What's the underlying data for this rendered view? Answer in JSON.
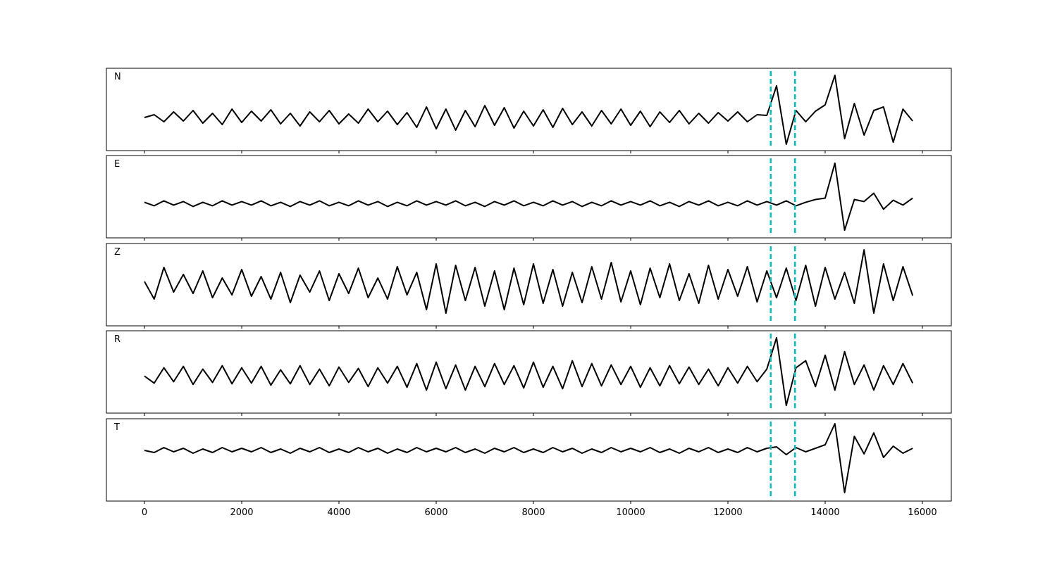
{
  "chart_data": [
    {
      "type": "line",
      "label": "N",
      "color": "#000000",
      "vline_color": "#00bfbf",
      "vlines": [
        12880,
        13380
      ],
      "xlim": [
        -783,
        16594
      ],
      "xticks": [
        0,
        2000,
        4000,
        6000,
        8000,
        10000,
        12000,
        14000,
        16000
      ],
      "show_xticklabels": false,
      "ylim": [
        -47,
        70
      ],
      "x": [
        0,
        200,
        400,
        600,
        800,
        1000,
        1200,
        1400,
        1600,
        1800,
        2000,
        2200,
        2400,
        2600,
        2800,
        3000,
        3200,
        3400,
        3600,
        3800,
        4000,
        4200,
        4400,
        4600,
        4800,
        5000,
        5200,
        5400,
        5600,
        5800,
        6000,
        6200,
        6400,
        6600,
        6800,
        7000,
        7200,
        7400,
        7600,
        7800,
        8000,
        8200,
        8400,
        8600,
        8800,
        9000,
        9200,
        9400,
        9600,
        9800,
        10000,
        10200,
        10400,
        10600,
        10800,
        11000,
        11200,
        11400,
        11600,
        11800,
        12000,
        12200,
        12400,
        12600,
        12800,
        13000,
        13200,
        13400,
        13600,
        13800,
        14000,
        14200,
        14400,
        14600,
        14800,
        15000,
        15200,
        15400,
        15600,
        15800
      ],
      "values": [
        0,
        4,
        -6,
        8,
        -5,
        10,
        -8,
        6,
        -10,
        12,
        -7,
        9,
        -5,
        11,
        -9,
        6,
        -12,
        8,
        -6,
        10,
        -9,
        5,
        -8,
        12,
        -6,
        9,
        -10,
        7,
        -14,
        15,
        -16,
        12,
        -18,
        10,
        -13,
        17,
        -11,
        14,
        -15,
        9,
        -12,
        11,
        -14,
        13,
        -10,
        8,
        -12,
        10,
        -9,
        12,
        -11,
        9,
        -13,
        8,
        -7,
        10,
        -9,
        6,
        -8,
        7,
        -5,
        8,
        -6,
        4,
        3,
        45,
        -38,
        10,
        -6,
        9,
        18,
        60,
        -30,
        20,
        -25,
        10,
        15,
        -35,
        12,
        -5
      ]
    },
    {
      "type": "line",
      "label": "E",
      "color": "#000000",
      "vline_color": "#00bfbf",
      "vlines": [
        12880,
        13380
      ],
      "xlim": [
        -783,
        16594
      ],
      "xticks": [
        0,
        2000,
        4000,
        6000,
        8000,
        10000,
        12000,
        14000,
        16000
      ],
      "show_xticklabels": false,
      "ylim": [
        -49,
        69
      ],
      "x": [
        0,
        200,
        400,
        600,
        800,
        1000,
        1200,
        1400,
        1600,
        1800,
        2000,
        2200,
        2400,
        2600,
        2800,
        3000,
        3200,
        3400,
        3600,
        3800,
        4000,
        4200,
        4400,
        4600,
        4800,
        5000,
        5200,
        5400,
        5600,
        5800,
        6000,
        6200,
        6400,
        6600,
        6800,
        7000,
        7200,
        7400,
        7600,
        7800,
        8000,
        8200,
        8400,
        8600,
        8800,
        9000,
        9200,
        9400,
        9600,
        9800,
        10000,
        10200,
        10400,
        10600,
        10800,
        11000,
        11200,
        11400,
        11600,
        11800,
        12000,
        12200,
        12400,
        12600,
        12800,
        13000,
        13200,
        13400,
        13600,
        13800,
        14000,
        14200,
        14400,
        14600,
        14800,
        15000,
        15200,
        15400,
        15600,
        15800
      ],
      "values": [
        2,
        -3,
        4,
        -2,
        3,
        -4,
        2,
        -3,
        4,
        -2,
        3,
        -2,
        4,
        -3,
        2,
        -4,
        3,
        -2,
        4,
        -3,
        2,
        -3,
        4,
        -2,
        3,
        -4,
        2,
        -3,
        4,
        -2,
        3,
        -2,
        4,
        -3,
        2,
        -4,
        3,
        -2,
        4,
        -3,
        2,
        -3,
        4,
        -2,
        3,
        -4,
        2,
        -3,
        4,
        -2,
        3,
        -2,
        4,
        -3,
        2,
        -4,
        3,
        -2,
        4,
        -3,
        2,
        -3,
        4,
        -2,
        3,
        -2,
        4,
        -3,
        2,
        6,
        8,
        58,
        -38,
        6,
        3,
        15,
        -8,
        5,
        -2,
        8
      ]
    },
    {
      "type": "line",
      "label": "Z",
      "color": "#000000",
      "vline_color": "#00bfbf",
      "vlines": [
        12880,
        13380
      ],
      "xlim": [
        -783,
        16594
      ],
      "xticks": [
        0,
        2000,
        4000,
        6000,
        8000,
        10000,
        12000,
        14000,
        16000
      ],
      "show_xticklabels": false,
      "ylim": [
        -58,
        59
      ],
      "x": [
        0,
        200,
        400,
        600,
        800,
        1000,
        1200,
        1400,
        1600,
        1800,
        2000,
        2200,
        2400,
        2600,
        2800,
        3000,
        3200,
        3400,
        3600,
        3800,
        4000,
        4200,
        4400,
        4600,
        4800,
        5000,
        5200,
        5400,
        5600,
        5800,
        6000,
        6200,
        6400,
        6600,
        6800,
        7000,
        7200,
        7400,
        7600,
        7800,
        8000,
        8200,
        8400,
        8600,
        8800,
        9000,
        9200,
        9400,
        9600,
        9800,
        10000,
        10200,
        10400,
        10600,
        10800,
        11000,
        11200,
        11400,
        11600,
        11800,
        12000,
        12200,
        12400,
        12600,
        12800,
        13000,
        13200,
        13400,
        13600,
        13800,
        14000,
        14200,
        14400,
        14600,
        14800,
        15000,
        15200,
        15400,
        15600,
        15800
      ],
      "values": [
        5,
        -20,
        25,
        -10,
        15,
        -12,
        20,
        -18,
        10,
        -14,
        22,
        -16,
        12,
        -20,
        18,
        -25,
        14,
        -10,
        20,
        -22,
        16,
        -12,
        24,
        -18,
        10,
        -20,
        26,
        -14,
        18,
        -35,
        30,
        -40,
        28,
        -22,
        25,
        -30,
        20,
        -35,
        24,
        -28,
        30,
        -26,
        22,
        -30,
        18,
        -25,
        26,
        -20,
        32,
        -24,
        20,
        -28,
        24,
        -18,
        30,
        -22,
        16,
        -26,
        28,
        -20,
        22,
        -16,
        26,
        -24,
        20,
        -18,
        24,
        -22,
        28,
        -30,
        25,
        -20,
        18,
        -26,
        50,
        -40,
        30,
        -22,
        26,
        -15
      ]
    },
    {
      "type": "line",
      "label": "R",
      "color": "#000000",
      "vline_color": "#00bfbf",
      "vlines": [
        12880,
        13380
      ],
      "xlim": [
        -783,
        16594
      ],
      "xticks": [
        0,
        2000,
        4000,
        6000,
        8000,
        10000,
        12000,
        14000,
        16000
      ],
      "show_xticklabels": false,
      "ylim": [
        -53,
        65
      ],
      "x": [
        0,
        200,
        400,
        600,
        800,
        1000,
        1200,
        1400,
        1600,
        1800,
        2000,
        2200,
        2400,
        2600,
        2800,
        3000,
        3200,
        3400,
        3600,
        3800,
        4000,
        4200,
        4400,
        4600,
        4800,
        5000,
        5200,
        5400,
        5600,
        5800,
        6000,
        6200,
        6400,
        6600,
        6800,
        7000,
        7200,
        7400,
        7600,
        7800,
        8000,
        8200,
        8400,
        8600,
        8800,
        9000,
        9200,
        9400,
        9600,
        9800,
        10000,
        10200,
        10400,
        10600,
        10800,
        11000,
        11200,
        11400,
        11600,
        11800,
        12000,
        12200,
        12400,
        12600,
        12800,
        13000,
        13200,
        13400,
        13600,
        13800,
        14000,
        14200,
        14400,
        14600,
        14800,
        15000,
        15200,
        15400,
        15600,
        15800
      ],
      "values": [
        0,
        -10,
        12,
        -8,
        14,
        -12,
        10,
        -9,
        15,
        -11,
        12,
        -10,
        14,
        -13,
        9,
        -11,
        15,
        -12,
        10,
        -14,
        13,
        -9,
        11,
        -15,
        12,
        -10,
        14,
        -16,
        18,
        -20,
        20,
        -18,
        16,
        -20,
        14,
        -15,
        18,
        -12,
        15,
        -17,
        20,
        -16,
        14,
        -18,
        22,
        -15,
        18,
        -14,
        16,
        -12,
        14,
        -16,
        12,
        -14,
        15,
        -11,
        13,
        -12,
        10,
        -14,
        12,
        -10,
        14,
        -8,
        10,
        55,
        -42,
        12,
        22,
        -15,
        30,
        -20,
        35,
        -12,
        16,
        -20,
        15,
        -12,
        18,
        -10
      ]
    },
    {
      "type": "line",
      "label": "T",
      "color": "#000000",
      "vline_color": "#00bfbf",
      "vlines": [
        12880,
        13380
      ],
      "xlim": [
        -783,
        16594
      ],
      "xticks": [
        0,
        2000,
        4000,
        6000,
        8000,
        10000,
        12000,
        14000,
        16000
      ],
      "show_xticklabels": true,
      "ylim": [
        -72,
        45
      ],
      "x": [
        0,
        200,
        400,
        600,
        800,
        1000,
        1200,
        1400,
        1600,
        1800,
        2000,
        2200,
        2400,
        2600,
        2800,
        3000,
        3200,
        3400,
        3600,
        3800,
        4000,
        4200,
        4400,
        4600,
        4800,
        5000,
        5200,
        5400,
        5600,
        5800,
        6000,
        6200,
        6400,
        6600,
        6800,
        7000,
        7200,
        7400,
        7600,
        7800,
        8000,
        8200,
        8400,
        8600,
        8800,
        9000,
        9200,
        9400,
        9600,
        9800,
        10000,
        10200,
        10400,
        10600,
        10800,
        11000,
        11200,
        11400,
        11600,
        11800,
        12000,
        12200,
        12400,
        12600,
        12800,
        13000,
        13200,
        13400,
        13600,
        13800,
        14000,
        14200,
        14400,
        14600,
        14800,
        15000,
        15200,
        15400,
        15600,
        15800
      ],
      "values": [
        0,
        -3,
        4,
        -2,
        3,
        -4,
        2,
        -3,
        4,
        -2,
        3,
        -2,
        4,
        -3,
        2,
        -4,
        3,
        -2,
        4,
        -3,
        2,
        -3,
        4,
        -2,
        3,
        -4,
        2,
        -3,
        4,
        -2,
        3,
        -2,
        4,
        -3,
        2,
        -4,
        3,
        -2,
        4,
        -3,
        2,
        -3,
        4,
        -2,
        3,
        -4,
        2,
        -3,
        4,
        -2,
        3,
        -2,
        4,
        -3,
        2,
        -4,
        3,
        -2,
        4,
        -3,
        2,
        -3,
        4,
        -2,
        3,
        5,
        -6,
        4,
        -2,
        3,
        8,
        38,
        -60,
        20,
        -5,
        25,
        -10,
        6,
        -4,
        3
      ]
    }
  ]
}
